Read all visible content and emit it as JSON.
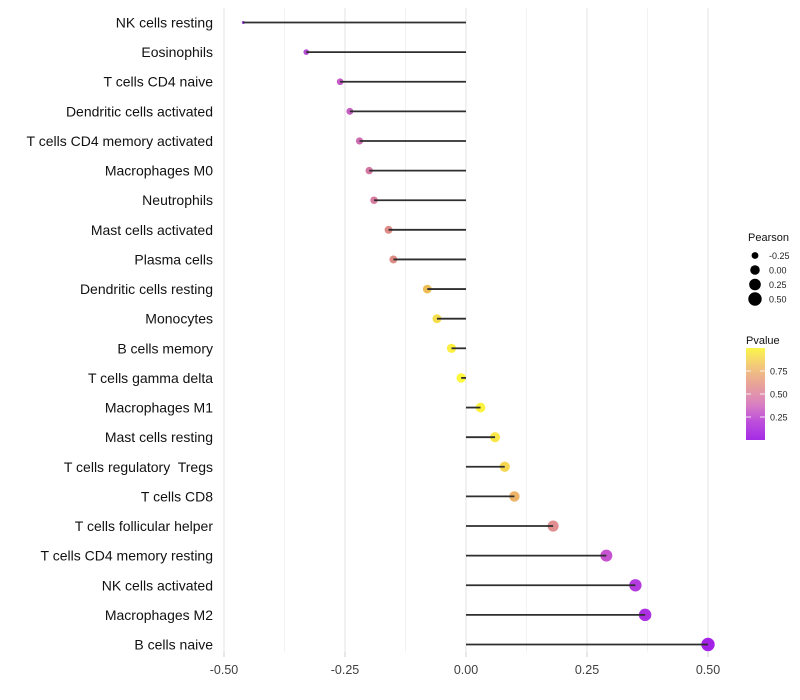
{
  "chart_data": {
    "type": "scatter",
    "variant": "lollipop",
    "title": "",
    "xlabel": "",
    "ylabel": "",
    "xlim": [
      -0.52,
      0.55
    ],
    "x_ticks": [
      "-0.50",
      "-0.25",
      "0.00",
      "0.25",
      "0.50"
    ],
    "x_tick_values": [
      -0.5,
      -0.25,
      0,
      0.25,
      0.5
    ],
    "minor_grid_values": [
      -0.375,
      -0.125,
      0.125,
      0.375
    ],
    "grid": "major+minor",
    "legend_position": "right",
    "categories": [
      "NK cells resting",
      "Eosinophils",
      "T cells CD4 naive",
      "Dendritic cells activated",
      "T cells CD4 memory activated",
      "Macrophages M0",
      "Neutrophils",
      "Mast cells activated",
      "Plasma cells",
      "Dendritic cells resting",
      "Monocytes",
      "B cells memory",
      "T cells gamma delta",
      "Macrophages M1",
      "Mast cells resting",
      "T cells regulatory  Tregs",
      "T cells CD8",
      "T cells follicular helper",
      "T cells CD4 memory resting",
      "NK cells activated",
      "Macrophages M2",
      "B cells naive"
    ],
    "series": [
      {
        "name": "Pearson",
        "values": [
          -0.46,
          -0.33,
          -0.26,
          -0.24,
          -0.22,
          -0.2,
          -0.19,
          -0.16,
          -0.15,
          -0.08,
          -0.06,
          -0.03,
          -0.01,
          0.03,
          0.06,
          0.08,
          0.1,
          0.18,
          0.29,
          0.35,
          0.37,
          0.5
        ],
        "point_colors": [
          "#9434d7",
          "#b44fd4",
          "#c45ac7",
          "#c75ec1",
          "#ce6cb2",
          "#d477a2",
          "#d67b9d",
          "#de8b87",
          "#de8d86",
          "#eebc55",
          "#f6de4b",
          "#fcf043",
          "#fdf83c",
          "#fbf33f",
          "#f9e749",
          "#f7d652",
          "#edb369",
          "#e08e90",
          "#c654d0",
          "#b33bdf",
          "#ac2fe2",
          "#a322e8"
        ]
      }
    ]
  },
  "legend": {
    "pearson": {
      "title": "Pearson",
      "labels": [
        "-0.25",
        "0.00",
        "0.25",
        "0.50"
      ],
      "values": [
        -0.25,
        0.0,
        0.25,
        0.5
      ],
      "dot_color": "#000000"
    },
    "pvalue": {
      "title": "Pvalue",
      "tick_labels": [
        "0.75",
        "0.50",
        "0.25"
      ],
      "tick_values": [
        0.75,
        0.5,
        0.25
      ],
      "range": [
        0,
        1
      ],
      "gradient_top_to_bottom": [
        "#fbf64b",
        "#f3c77b",
        "#e8a299",
        "#da83c0",
        "#bd4fdb",
        "#a52be6"
      ]
    }
  },
  "colors": {
    "background": "#ffffff",
    "stem": "#2e2e2e",
    "grid_major": "#e3e3e3",
    "grid_minor": "#f2f2f2",
    "tick_mark": "#cfcfcf"
  }
}
